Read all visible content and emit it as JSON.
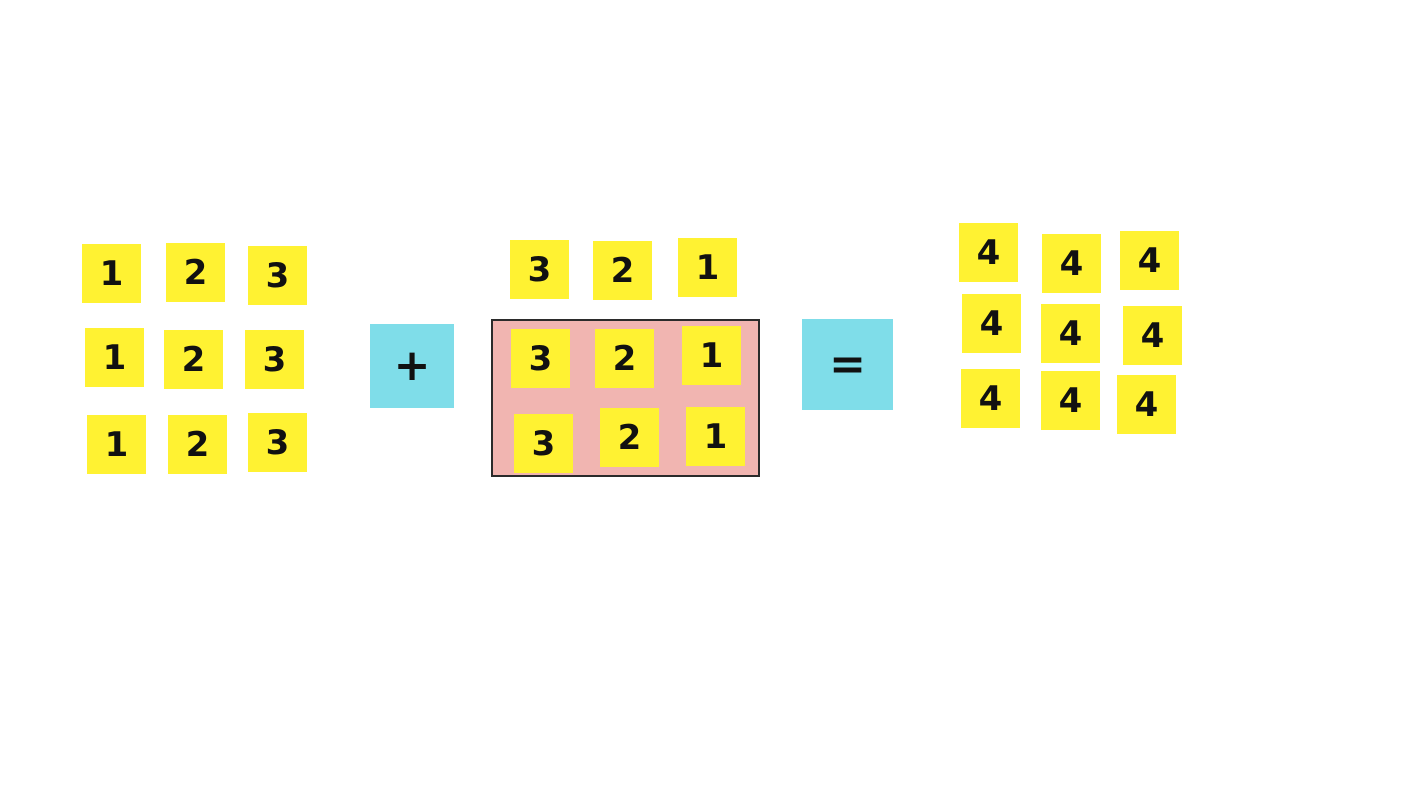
{
  "colors": {
    "note": "#fff232",
    "operator": "#7fdde9",
    "frame_fill": "#f1b5b1",
    "frame_border": "#2b2b2b",
    "text": "#111111",
    "background": "#ffffff"
  },
  "left_group": {
    "rows": [
      [
        "1",
        "2",
        "3"
      ],
      [
        "1",
        "2",
        "3"
      ],
      [
        "1",
        "2",
        "3"
      ]
    ]
  },
  "plus_operator": {
    "label": "+"
  },
  "middle_group": {
    "top_row": [
      "3",
      "2",
      "1"
    ],
    "framed_rows": [
      [
        "3",
        "2",
        "1"
      ],
      [
        "3",
        "2",
        "1"
      ]
    ]
  },
  "equals_operator": {
    "label": "="
  },
  "right_group": {
    "rows": [
      [
        "4",
        "4",
        "4"
      ],
      [
        "4",
        "4",
        "4"
      ],
      [
        "4",
        "4",
        "4"
      ]
    ]
  }
}
